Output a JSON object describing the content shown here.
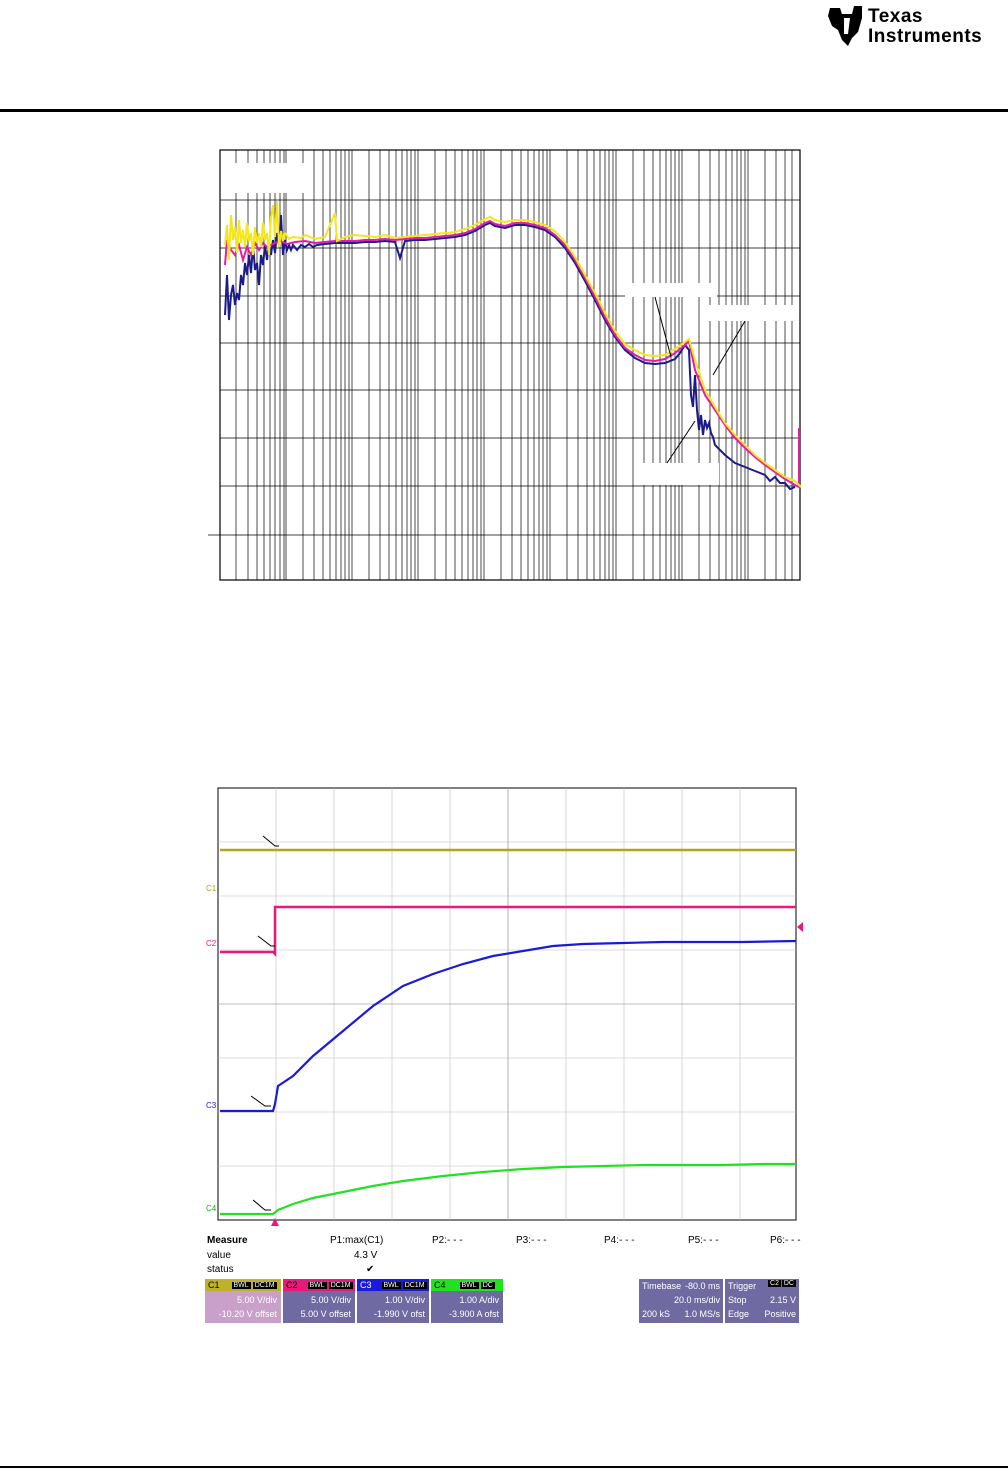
{
  "header": {
    "brand_line1": "Texas",
    "brand_line2": "Instruments"
  },
  "scope": {
    "channel_labels": [
      "C1",
      "C2",
      "C3",
      "C4"
    ],
    "measure": {
      "title": "Measure",
      "columns": [
        "P1:max(C1)",
        "P2:- - -",
        "P3:- - -",
        "P4:- - -",
        "P5:- - -",
        "P6:- - -"
      ],
      "row_value_label": "value",
      "row_status_label": "status",
      "p1_value": "4.3 V",
      "p1_status": "✔"
    },
    "channels": [
      {
        "name": "C1",
        "tag1": "BWL",
        "tag2": "DC1M",
        "scale": "5.00 V/div",
        "offset": "-10.20 V offset",
        "color": "#bfb22a",
        "body": "#c9a0c9"
      },
      {
        "name": "C2",
        "tag1": "BWL",
        "tag2": "DC1M",
        "scale": "5.00 V/div",
        "offset": "5.00 V offset",
        "color": "#e8197a",
        "body": "#6f6aa2"
      },
      {
        "name": "C3",
        "tag1": "BWL",
        "tag2": "DC1M",
        "scale": "1.00 V/div",
        "offset": "-1.990 V ofst",
        "color": "#1a1adb",
        "body": "#6f6aa2"
      },
      {
        "name": "C4",
        "tag1": "BWL",
        "tag2": "DC",
        "scale": "1.00 A/div",
        "offset": "-3.900 A ofst",
        "color": "#21e221",
        "body": "#6f6aa2"
      }
    ],
    "timebase": {
      "label": "Timebase",
      "delay": "-80.0 ms",
      "tdiv": "20.0 ms/div",
      "samples": "200 kS",
      "rate": "1.0 MS/s"
    },
    "trigger": {
      "label": "Trigger",
      "source": "C2",
      "coupling": "DC",
      "mode": "Stop",
      "level": "2.15 V",
      "type": "Edge",
      "slope": "Positive"
    }
  }
}
